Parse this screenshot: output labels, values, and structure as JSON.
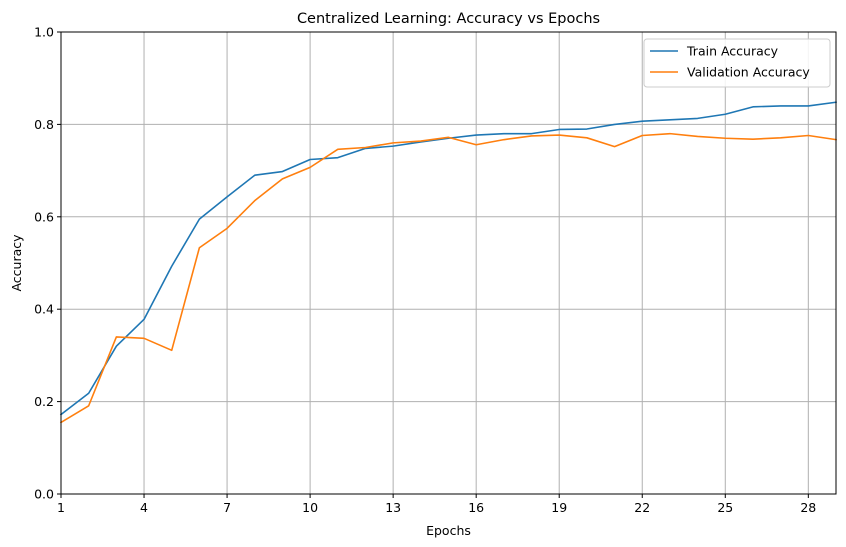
{
  "chart_data": {
    "type": "line",
    "title": "Centralized Learning: Accuracy vs Epochs",
    "xlabel": "Epochs",
    "ylabel": "Accuracy",
    "xlim": [
      1,
      29
    ],
    "ylim": [
      0,
      1
    ],
    "xticks": [
      1,
      4,
      7,
      10,
      13,
      16,
      19,
      22,
      25,
      28
    ],
    "yticks": [
      0.0,
      0.2,
      0.4,
      0.6,
      0.8,
      1.0
    ],
    "ytick_labels": [
      "0.0",
      "0.2",
      "0.4",
      "0.6",
      "0.8",
      "1.0"
    ],
    "grid": true,
    "legend_position": "upper-right",
    "x": [
      1,
      2,
      3,
      4,
      5,
      6,
      7,
      8,
      9,
      10,
      11,
      12,
      13,
      14,
      15,
      16,
      17,
      18,
      19,
      20,
      21,
      22,
      23,
      24,
      25,
      26,
      27,
      28,
      29
    ],
    "series": [
      {
        "name": "Train Accuracy",
        "color": "#1f77b4",
        "values": [
          0.172,
          0.218,
          0.32,
          0.378,
          0.493,
          0.595,
          0.643,
          0.69,
          0.698,
          0.724,
          0.728,
          0.748,
          0.753,
          0.762,
          0.77,
          0.777,
          0.78,
          0.78,
          0.789,
          0.79,
          0.8,
          0.807,
          0.81,
          0.813,
          0.822,
          0.838,
          0.84,
          0.84,
          0.848
        ]
      },
      {
        "name": "Validation Accuracy",
        "color": "#ff7f0e",
        "values": [
          0.155,
          0.191,
          0.34,
          0.337,
          0.311,
          0.533,
          0.575,
          0.635,
          0.682,
          0.707,
          0.746,
          0.75,
          0.76,
          0.764,
          0.772,
          0.756,
          0.767,
          0.775,
          0.777,
          0.771,
          0.752,
          0.776,
          0.78,
          0.774,
          0.77,
          0.768,
          0.771,
          0.776,
          0.767
        ]
      }
    ]
  }
}
